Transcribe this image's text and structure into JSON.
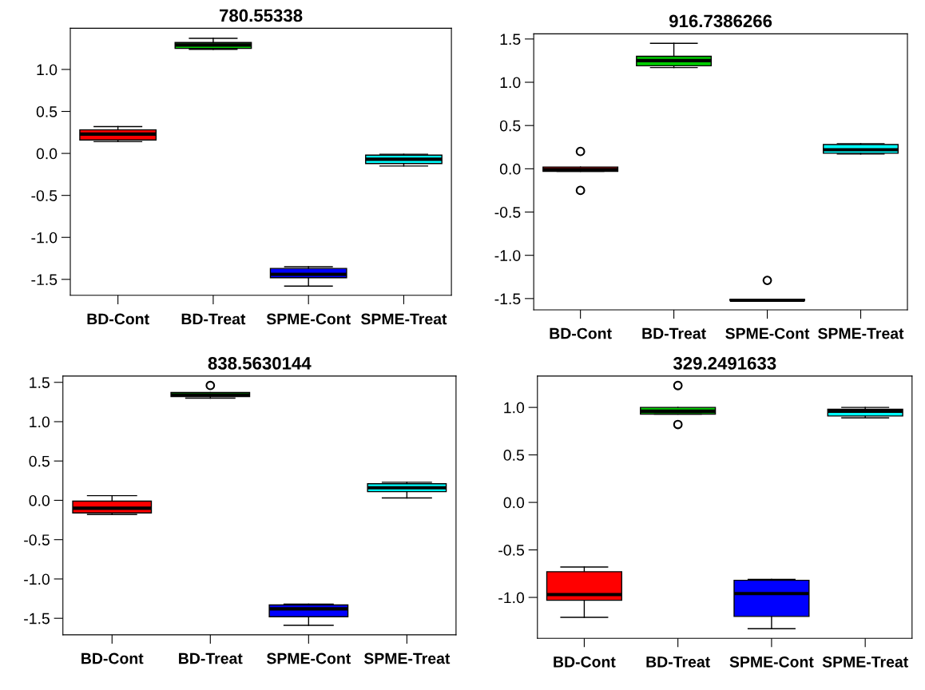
{
  "chart_data": [
    {
      "type": "box",
      "title": "780.55338",
      "categories": [
        "BD-Cont",
        "BD-Treat",
        "SPME-Cont",
        "SPME-Treat"
      ],
      "colors": [
        "#ff0000",
        "#00cc00",
        "#0000ff",
        "#00ffff"
      ],
      "ylim": [
        -1.69,
        1.49
      ],
      "yticks": [
        {
          "value": -1.5,
          "label": "-1.5"
        },
        {
          "value": -1,
          "label": "-1.0"
        },
        {
          "value": -0.5,
          "label": "-0.5"
        },
        {
          "value": 0,
          "label": "0.0"
        },
        {
          "value": 0.5,
          "label": "0.5"
        },
        {
          "value": 1,
          "label": "1.0"
        }
      ],
      "boxes": [
        {
          "low": 0.14,
          "q1": 0.16,
          "median": 0.23,
          "q3": 0.28,
          "high": 0.32
        },
        {
          "low": 1.24,
          "q1": 1.25,
          "median": 1.29,
          "q3": 1.32,
          "high": 1.37
        },
        {
          "low": -1.58,
          "q1": -1.48,
          "median": -1.44,
          "q3": -1.37,
          "high": -1.35
        },
        {
          "low": -0.15,
          "q1": -0.12,
          "median": -0.07,
          "q3": -0.02,
          "high": -0.01
        }
      ]
    },
    {
      "type": "box",
      "title": "916.7386266",
      "categories": [
        "BD-Cont",
        "BD-Treat",
        "SPME-Cont",
        "SPME-Treat"
      ],
      "colors": [
        "#ff0000",
        "#00cc00",
        "#0000ff",
        "#00ffff"
      ],
      "ylim": [
        -1.63,
        1.56
      ],
      "yticks": [
        {
          "value": -1.5,
          "label": "-1.5"
        },
        {
          "value": -1,
          "label": "-1.0"
        },
        {
          "value": -0.5,
          "label": "-0.5"
        },
        {
          "value": 0,
          "label": "0.0"
        },
        {
          "value": 0.5,
          "label": "0.5"
        },
        {
          "value": 1,
          "label": "1.0"
        },
        {
          "value": 1.5,
          "label": "1.5"
        }
      ],
      "boxes": [
        {
          "low": -0.03,
          "q1": -0.03,
          "median": -0.01,
          "q3": 0.02,
          "high": 0.02,
          "outliers": [
            0.2,
            -0.25
          ]
        },
        {
          "low": 1.17,
          "q1": 1.19,
          "median": 1.25,
          "q3": 1.3,
          "high": 1.45
        },
        {
          "low": -1.52,
          "q1": -1.52,
          "median": -1.52,
          "q3": -1.51,
          "high": -1.51,
          "outliers": [
            -1.29
          ]
        },
        {
          "low": 0.17,
          "q1": 0.18,
          "median": 0.22,
          "q3": 0.28,
          "high": 0.29
        }
      ]
    },
    {
      "type": "box",
      "title": "838.5630144",
      "categories": [
        "BD-Cont",
        "BD-Treat",
        "SPME-Cont",
        "SPME-Treat"
      ],
      "colors": [
        "#ff0000",
        "#00cc00",
        "#0000ff",
        "#00ffff"
      ],
      "ylim": [
        -1.71,
        1.58
      ],
      "yticks": [
        {
          "value": -1.5,
          "label": "-1.5"
        },
        {
          "value": -1,
          "label": "-1.0"
        },
        {
          "value": -0.5,
          "label": "-0.5"
        },
        {
          "value": 0,
          "label": "0.0"
        },
        {
          "value": 0.5,
          "label": "0.5"
        },
        {
          "value": 1,
          "label": "1.0"
        },
        {
          "value": 1.5,
          "label": "1.5"
        }
      ],
      "boxes": [
        {
          "low": -0.18,
          "q1": -0.16,
          "median": -0.1,
          "q3": -0.01,
          "high": 0.06
        },
        {
          "low": 1.3,
          "q1": 1.32,
          "median": 1.34,
          "q3": 1.37,
          "high": 1.37,
          "outliers": [
            1.46
          ]
        },
        {
          "low": -1.59,
          "q1": -1.48,
          "median": -1.38,
          "q3": -1.33,
          "high": -1.32
        },
        {
          "low": 0.03,
          "q1": 0.11,
          "median": 0.16,
          "q3": 0.21,
          "high": 0.23
        }
      ]
    },
    {
      "type": "box",
      "title": "329.2491633",
      "categories": [
        "BD-Cont",
        "BD-Treat",
        "SPME-Cont",
        "SPME-Treat"
      ],
      "colors": [
        "#ff0000",
        "#00cc00",
        "#0000ff",
        "#00ffff"
      ],
      "ylim": [
        -1.43,
        1.33
      ],
      "yticks": [
        {
          "value": -1,
          "label": "-1.0"
        },
        {
          "value": -0.5,
          "label": "-0.5"
        },
        {
          "value": 0,
          "label": "0.0"
        },
        {
          "value": 0.5,
          "label": "0.5"
        },
        {
          "value": 1,
          "label": "1.0"
        }
      ],
      "boxes": [
        {
          "low": -1.21,
          "q1": -1.03,
          "median": -0.97,
          "q3": -0.73,
          "high": -0.68
        },
        {
          "low": 0.93,
          "q1": 0.93,
          "median": 0.96,
          "q3": 1.0,
          "high": 1.0,
          "outliers": [
            1.23,
            0.82
          ]
        },
        {
          "low": -1.33,
          "q1": -1.2,
          "median": -0.96,
          "q3": -0.82,
          "high": -0.81
        },
        {
          "low": 0.89,
          "q1": 0.91,
          "median": 0.96,
          "q3": 0.98,
          "high": 1.0
        }
      ]
    }
  ]
}
